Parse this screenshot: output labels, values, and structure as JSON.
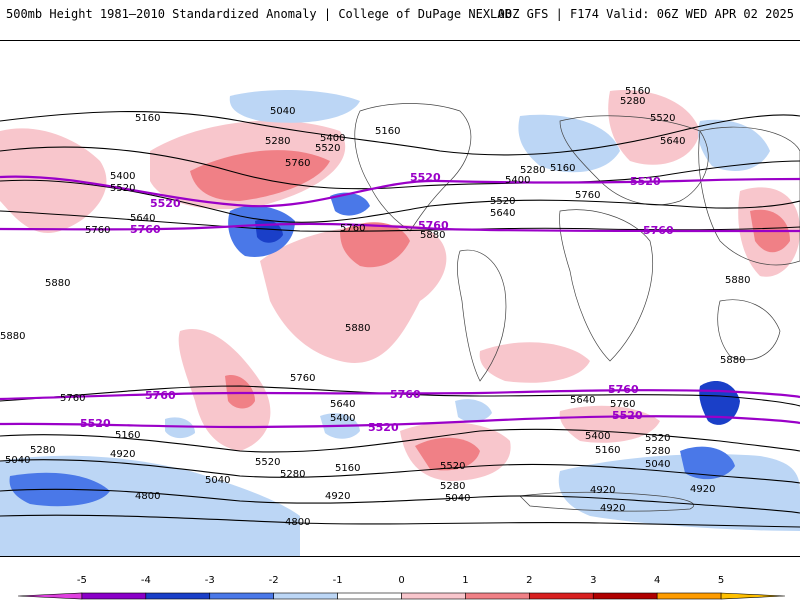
{
  "header": {
    "left_title": "500mb Height 1981–2010 Standardized Anomaly | College of DuPage NEXLAB",
    "right_title": "00Z GFS | F174 Valid: 06Z WED APR 02 2025"
  },
  "map": {
    "contour_labels_black": [
      "5160",
      "5280",
      "5040",
      "5400",
      "5520",
      "5640",
      "5760",
      "5880",
      "4920",
      "4800"
    ],
    "contour_labels_purple": [
      "5520",
      "5760"
    ]
  },
  "colorbar": {
    "ticks": [
      "-5",
      "-4",
      "-3",
      "-2",
      "-1",
      "0",
      "1",
      "2",
      "3",
      "4",
      "5"
    ],
    "colors": [
      "#e040e0",
      "#8a00c8",
      "#1a3fc8",
      "#4a78e8",
      "#bcd6f5",
      "#ffffff",
      "#f8c6cc",
      "#f08086",
      "#d82020",
      "#b00000",
      "#ff9c00",
      "#ffc000"
    ]
  }
}
